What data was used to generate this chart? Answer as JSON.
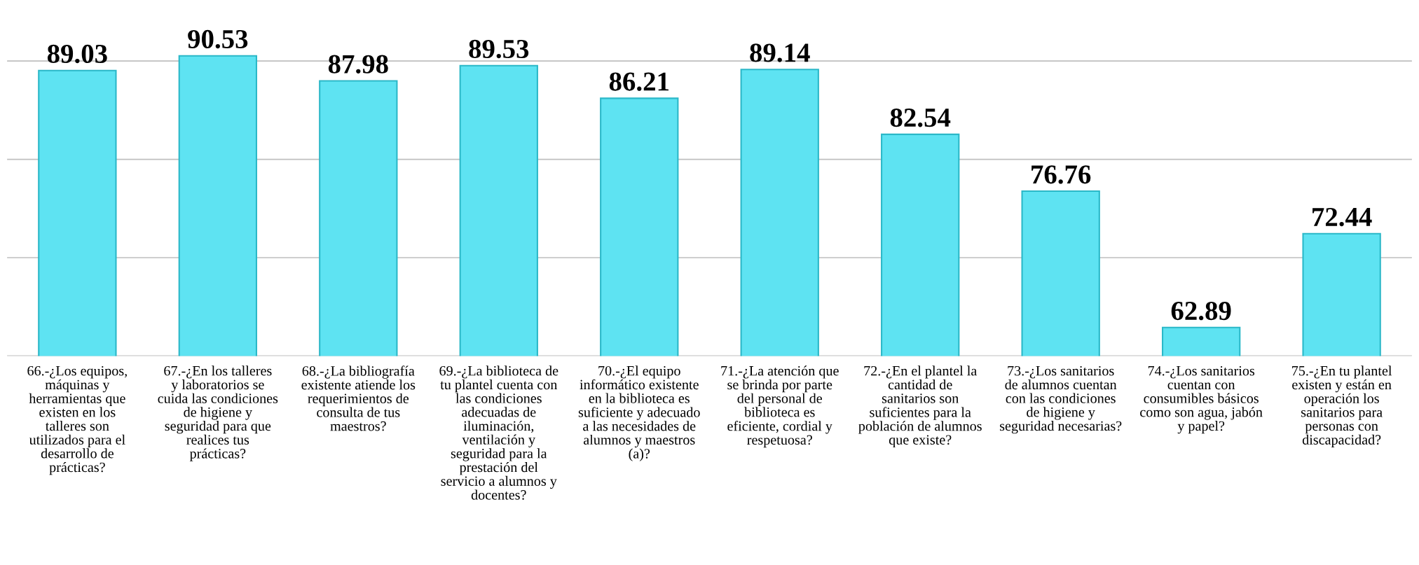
{
  "chart_data": {
    "type": "bar",
    "categories": [
      "66.-¿Los equipos, máquinas y herramientas que existen en los talleres son utilizados para el desarrollo de prácticas?",
      "67.-¿En los talleres y laboratorios se cuida las condiciones de higiene y seguridad para que realices tus prácticas?",
      "68.-¿La bibliografía existente atiende los requerimientos de consulta de tus maestros?",
      "69.-¿La biblioteca de tu plantel cuenta con las condiciones adecuadas de iluminación, ventilación y seguridad para la prestación del servicio a alumnos y docentes?",
      "70.-¿El equipo informático existente en la biblioteca es suficiente y adecuado a las necesidades de alumnos y maestros (a)?",
      "71.-¿La atención que se brinda por parte del personal de biblioteca es eficiente, cordial y respetuosa?",
      "72.-¿En el plantel la cantidad de sanitarios son suficientes para la población de alumnos que existe?",
      "73.-¿Los sanitarios de alumnos cuentan con las condiciones de higiene y seguridad necesarias?",
      "74.-¿Los sanitarios cuentan con consumibles básicos como son agua, jabón y papel?",
      "75.-¿En tu plantel existen y están en operación los sanitarios para personas con discapacidad?"
    ],
    "values": [
      89.03,
      90.53,
      87.98,
      89.53,
      86.21,
      89.14,
      82.54,
      76.76,
      62.89,
      72.44
    ],
    "color": "#5ee3f2",
    "data_labels": true,
    "yticks": [
      {
        "value": 60,
        "label": null
      },
      {
        "value": 70,
        "label": null
      },
      {
        "value": 80,
        "label": null
      },
      {
        "value": 90,
        "label": null
      }
    ],
    "grid": "y",
    "tick_labels": "x"
  }
}
